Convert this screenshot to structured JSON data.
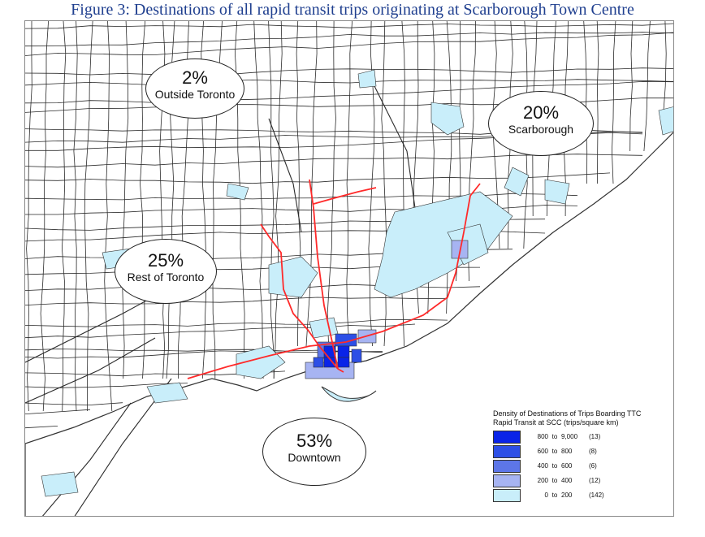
{
  "figure_title": "Figure 3: Destinations of all rapid transit trips originating at Scarborough Town Centre",
  "regions": [
    {
      "id": "outside-toronto",
      "percent": "2%",
      "label": "Outside Toronto"
    },
    {
      "id": "scarborough",
      "percent": "20%",
      "label": "Scarborough"
    },
    {
      "id": "rest-of-toronto",
      "percent": "25%",
      "label": "Rest of Toronto"
    },
    {
      "id": "downtown",
      "percent": "53%",
      "label": "Downtown"
    }
  ],
  "legend": {
    "title_line1": "Density of Destinations of Trips Boarding TTC",
    "title_line2": "Rapid Transit at SCC (trips/square km)",
    "classes": [
      {
        "low": "800",
        "to": "to",
        "high": "9,000",
        "count": "(13)",
        "color": "#0a24e8"
      },
      {
        "low": "600",
        "to": "to",
        "high": "800",
        "count": "(8)",
        "color": "#2d4fe6"
      },
      {
        "low": "400",
        "to": "to",
        "high": "600",
        "count": "(6)",
        "color": "#5d76e8"
      },
      {
        "low": "200",
        "to": "to",
        "high": "400",
        "count": "(12)",
        "color": "#a7b4f2"
      },
      {
        "low": "0",
        "to": "to",
        "high": "200",
        "count": "(142)",
        "color": "#c9eefa"
      }
    ]
  },
  "colors": {
    "water": "#c9eefa",
    "subway": "#ff2a2a",
    "roads": "#2a2a2a",
    "title": "#1f3f8f"
  }
}
